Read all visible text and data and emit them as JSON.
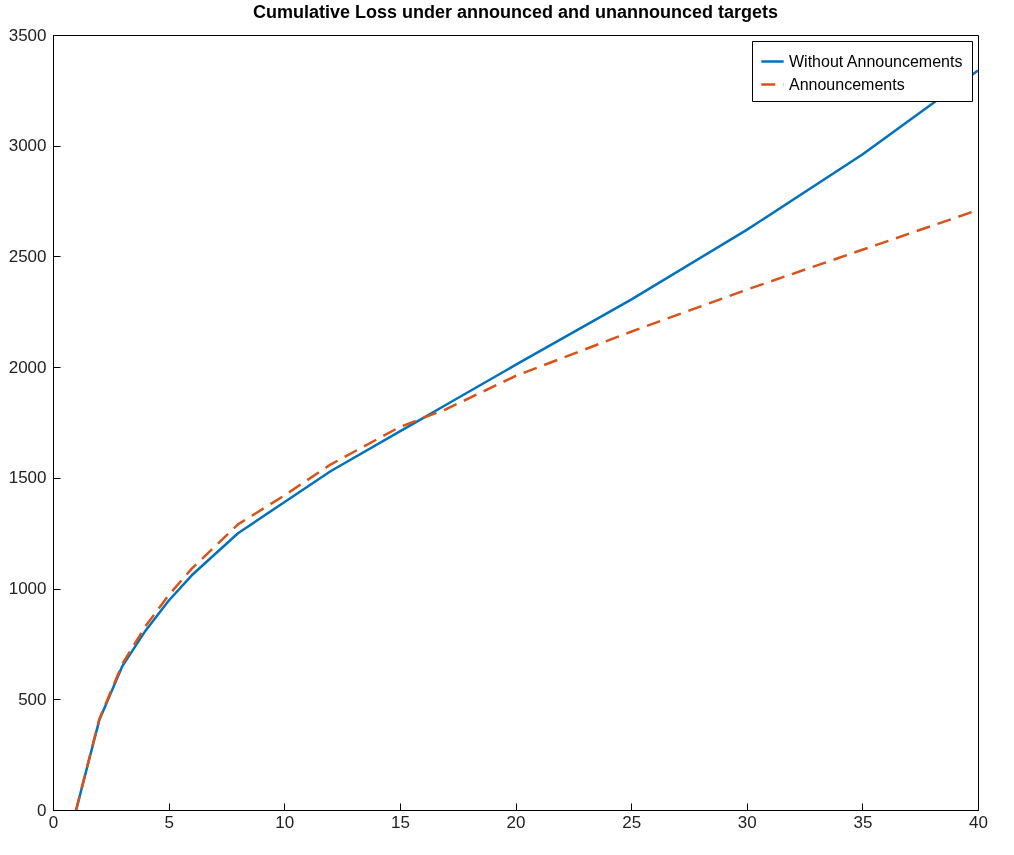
{
  "chart_data": {
    "type": "line",
    "title": "Cumulative Loss under announced and unannounced targets",
    "xlim": [
      0,
      40
    ],
    "xticks": [
      0,
      5,
      10,
      15,
      20,
      25,
      30,
      35,
      40
    ],
    "ylim": [
      0,
      3500
    ],
    "yticks": [
      0,
      500,
      1000,
      1500,
      2000,
      2500,
      3000,
      3500
    ],
    "legend": "top right",
    "grid": false,
    "x": [
      1,
      2,
      3,
      4,
      5,
      6,
      8,
      10,
      12,
      15,
      16,
      17,
      20,
      25,
      30,
      35,
      40
    ],
    "series": [
      {
        "name": "Without Announcements",
        "color": "#0072bd",
        "line_style": "solid",
        "values": [
          0,
          405,
          650,
          810,
          945,
          1060,
          1250,
          1390,
          1530,
          1710,
          1770,
          1830,
          2010,
          2305,
          2620,
          2960,
          3340
        ]
      },
      {
        "name": "Announcements",
        "color": "#d95319",
        "line_style": "dashed",
        "values": [
          0,
          410,
          660,
          830,
          970,
          1090,
          1290,
          1420,
          1560,
          1730,
          1770,
          1810,
          1960,
          2160,
          2350,
          2530,
          2710
        ]
      }
    ]
  }
}
